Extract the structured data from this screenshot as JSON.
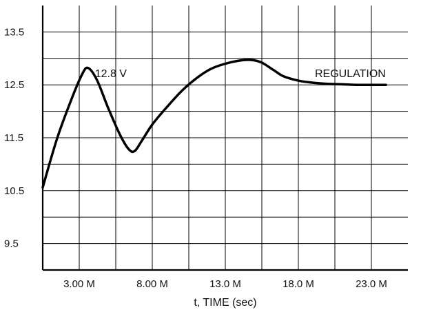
{
  "chart_data": {
    "type": "line",
    "title": "",
    "xlabel": "t, TIME (sec)",
    "ylabel": "",
    "xlim": [
      0.5,
      25.5
    ],
    "ylim": [
      9.0,
      14.0
    ],
    "grid": true,
    "x_tick_values": [
      3.0,
      8.0,
      13.0,
      18.0,
      23.0
    ],
    "x_tick_labels": [
      "3.00 M",
      "8.00 M",
      "13.0 M",
      "18.0 M",
      "23.0 M"
    ],
    "y_tick_values": [
      9.5,
      10.5,
      11.5,
      12.5,
      13.5
    ],
    "y_tick_labels": [
      "9.5",
      "10.5",
      "11.5",
      "12.5",
      "13.5"
    ],
    "series": [
      {
        "x": [
          0.5,
          1.5,
          2.5,
          3.2,
          3.6,
          4.2,
          5.0,
          5.8,
          6.4,
          6.8,
          7.3,
          8.0,
          9.0,
          10.0,
          11.0,
          12.0,
          13.0,
          14.0,
          14.8,
          15.5,
          16.3,
          17.0,
          18.0,
          19.0,
          20.0,
          21.0,
          22.0,
          23.0,
          24.0
        ],
        "y": [
          10.56,
          11.5,
          12.25,
          12.7,
          12.82,
          12.6,
          12.05,
          11.55,
          11.28,
          11.25,
          11.45,
          11.75,
          12.08,
          12.38,
          12.62,
          12.8,
          12.9,
          12.96,
          12.97,
          12.92,
          12.78,
          12.66,
          12.58,
          12.54,
          12.52,
          12.51,
          12.5,
          12.5,
          12.5
        ]
      }
    ],
    "annotations": {
      "peak_label": "12.8 V",
      "regulation_label": "REGULATION"
    }
  }
}
